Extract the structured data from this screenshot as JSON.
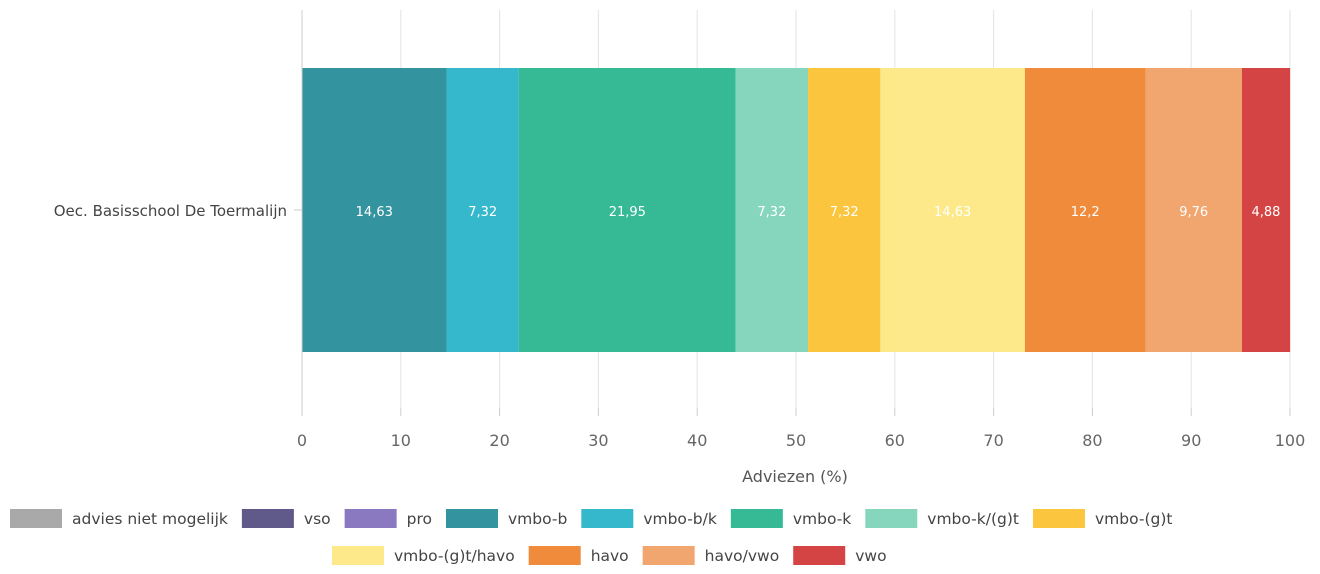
{
  "chart_data": {
    "type": "bar",
    "orientation": "horizontal",
    "stacked": true,
    "categories": [
      "Oec. Basisschool De Toermalijn"
    ],
    "series": [
      {
        "name": "advies niet mogelijk",
        "color": "#a9a9a9",
        "values": [
          0
        ]
      },
      {
        "name": "vso",
        "color": "#5f5a8a",
        "values": [
          0
        ]
      },
      {
        "name": "pro",
        "color": "#8a78c0",
        "values": [
          0
        ]
      },
      {
        "name": "vmbo-b",
        "color": "#33939e",
        "values": [
          14.63
        ]
      },
      {
        "name": "vmbo-b/k",
        "color": "#35b8cc",
        "values": [
          7.32
        ]
      },
      {
        "name": "vmbo-k",
        "color": "#36b995",
        "values": [
          21.95
        ]
      },
      {
        "name": "vmbo-k/(g)t",
        "color": "#86d6bd",
        "values": [
          7.32
        ]
      },
      {
        "name": "vmbo-(g)t",
        "color": "#fbc53e",
        "values": [
          7.32
        ]
      },
      {
        "name": "vmbo-(g)t/havo",
        "color": "#fde98a",
        "values": [
          14.63
        ]
      },
      {
        "name": "havo",
        "color": "#ef8b3b",
        "values": [
          12.2
        ]
      },
      {
        "name": "havo/vwo",
        "color": "#f2a66f",
        "values": [
          9.76
        ]
      },
      {
        "name": "vwo",
        "color": "#d44444",
        "values": [
          4.88
        ]
      }
    ],
    "data_labels": [
      "14,63",
      "7,32",
      "21,95",
      "7,32",
      "7,32",
      "14,63",
      "12,2",
      "9,76",
      "4,88"
    ],
    "xlabel": "Adviezen (%)",
    "ylabel": "",
    "xlim": [
      0,
      100
    ],
    "xticks": [
      "0",
      "10",
      "20",
      "30",
      "40",
      "50",
      "60",
      "70",
      "80",
      "90",
      "100"
    ],
    "grid": true,
    "legend_position": "bottom"
  }
}
